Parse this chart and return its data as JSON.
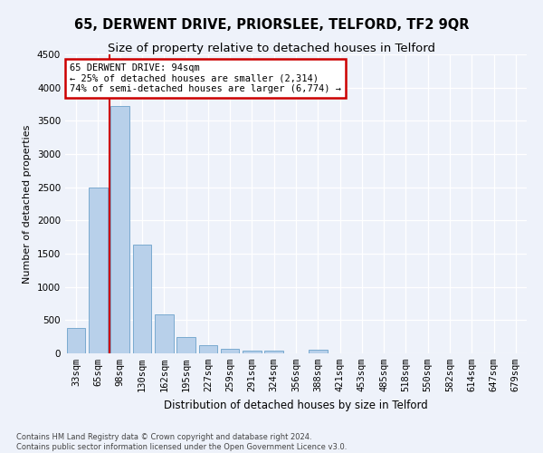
{
  "title": "65, DERWENT DRIVE, PRIORSLEE, TELFORD, TF2 9QR",
  "subtitle": "Size of property relative to detached houses in Telford",
  "xlabel": "Distribution of detached houses by size in Telford",
  "ylabel": "Number of detached properties",
  "categories": [
    "33sqm",
    "65sqm",
    "98sqm",
    "130sqm",
    "162sqm",
    "195sqm",
    "227sqm",
    "259sqm",
    "291sqm",
    "324sqm",
    "356sqm",
    "388sqm",
    "421sqm",
    "453sqm",
    "485sqm",
    "518sqm",
    "550sqm",
    "582sqm",
    "614sqm",
    "647sqm",
    "679sqm"
  ],
  "values": [
    380,
    2500,
    3720,
    1630,
    590,
    245,
    120,
    65,
    40,
    40,
    0,
    50,
    0,
    0,
    0,
    0,
    0,
    0,
    0,
    0,
    0
  ],
  "bar_color": "#b8d0ea",
  "bar_edge_color": "#7aaacf",
  "marker_line_color": "#cc0000",
  "annotation_box_color": "#ffffff",
  "annotation_box_edge_color": "#cc0000",
  "marker_label": "65 DERWENT DRIVE: 94sqm",
  "annotation_line1": "← 25% of detached houses are smaller (2,314)",
  "annotation_line2": "74% of semi-detached houses are larger (6,774) →",
  "ylim": [
    0,
    4500
  ],
  "yticks": [
    0,
    500,
    1000,
    1500,
    2000,
    2500,
    3000,
    3500,
    4000,
    4500
  ],
  "bg_color": "#eef2fa",
  "grid_color": "#ffffff",
  "footer_line1": "Contains HM Land Registry data © Crown copyright and database right 2024.",
  "footer_line2": "Contains public sector information licensed under the Open Government Licence v3.0.",
  "title_fontsize": 10.5,
  "subtitle_fontsize": 9.5,
  "xlabel_fontsize": 8.5,
  "ylabel_fontsize": 8,
  "tick_fontsize": 7.5,
  "annotation_fontsize": 7.5,
  "footer_fontsize": 6
}
